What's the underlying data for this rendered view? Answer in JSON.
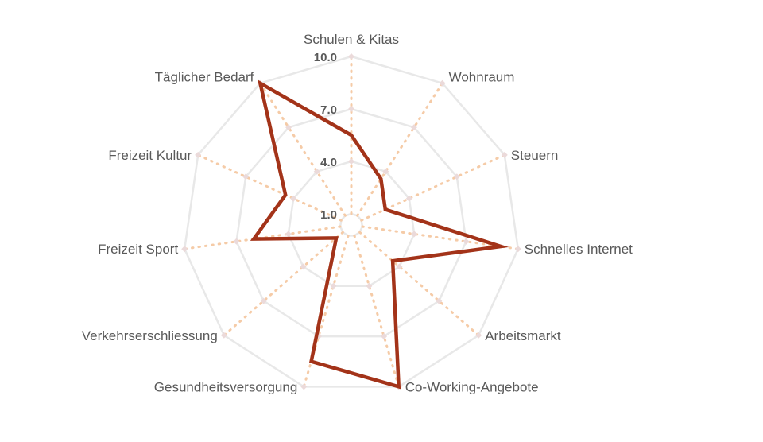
{
  "chart_data": {
    "type": "radar",
    "title": "",
    "categories": [
      "Schulen & Kitas",
      "Wohnraum",
      "Steuern",
      "Schnelles Internet",
      "Arbeitsmarkt",
      "Co-Working-Angebote",
      "Gesundheitsversorgung",
      "Verkehrserschliessung",
      "Freizeit Sport",
      "Freizeit Kultur",
      "Täglicher Bedarf"
    ],
    "series": [
      {
        "values": [
          5.5,
          3.5,
          2.5,
          9.0,
          3.5,
          10.0,
          8.5,
          1.5,
          6.0,
          4.5,
          10.0
        ]
      }
    ],
    "axis": {
      "min": 1.0,
      "max": 10.0,
      "ticks": [
        1.0,
        4.0,
        7.0,
        10.0
      ],
      "tick_labels": [
        "1.0",
        "4.0",
        "7.0",
        "10.0"
      ]
    },
    "grid_levels": [
      1.0,
      4.0,
      7.0,
      10.0
    ],
    "grid": true,
    "legend": "none",
    "colors": {
      "series_line": "#A33319",
      "grid": "#E8E8E8",
      "spokes": "#F5CBA7",
      "markers": "#EBDADA",
      "labels": "#595959"
    }
  }
}
